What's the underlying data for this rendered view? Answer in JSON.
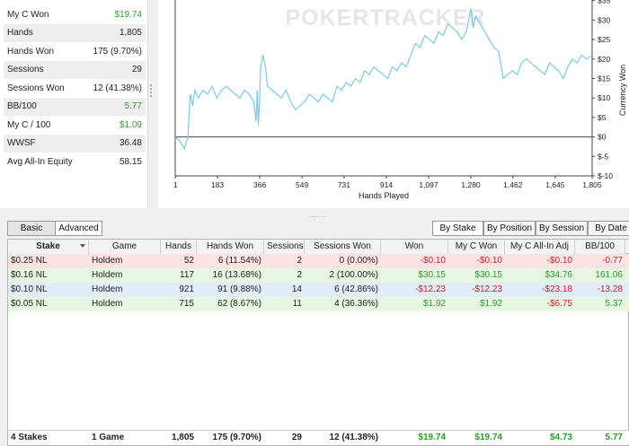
{
  "stats": [
    {
      "label": "My C Won",
      "value": "$19.74",
      "green": true
    },
    {
      "label": "Hands",
      "value": "1,805"
    },
    {
      "label": "Hands Won",
      "value": "175 (9.70%)"
    },
    {
      "label": "Sessions",
      "value": "29"
    },
    {
      "label": "Sessions Won",
      "value": "12 (41.38%)"
    },
    {
      "label": "BB/100",
      "value": "5.77",
      "green": true
    },
    {
      "label": "My C / 100",
      "value": "$1.09",
      "green": true
    },
    {
      "label": "WWSF",
      "value": "36.48"
    },
    {
      "label": "Avg All-In Equity",
      "value": "58.15"
    }
  ],
  "chart_data": {
    "type": "line",
    "watermark": "POKERTRACKER",
    "xlabel": "Hands Played",
    "ylabel": "Currency Won",
    "xlim": [
      0,
      1805
    ],
    "ylim": [
      -10,
      37
    ],
    "x_ticks": [
      1,
      183,
      366,
      549,
      731,
      914,
      1097,
      1280,
      1462,
      1645,
      1805
    ],
    "x_tick_labels": [
      "1",
      "183",
      "366",
      "549",
      "731",
      "914",
      "1,097",
      "1,280",
      "1,462",
      "1,645",
      "1,805"
    ],
    "y_ticks": [
      -10,
      -5,
      0,
      5,
      10,
      15,
      20,
      25,
      30,
      35
    ],
    "y_tick_labels": [
      "$-10",
      "$-5",
      "$0",
      "$5",
      "$10",
      "$15",
      "$20",
      "$25",
      "$30",
      "$35"
    ],
    "line_color": "#7ec8e3",
    "series": [
      {
        "x": [
          1,
          20,
          40,
          55,
          65,
          75,
          85,
          100,
          120,
          140,
          160,
          180,
          200,
          220,
          240,
          260,
          280,
          300,
          320,
          340,
          350,
          355,
          360,
          365,
          370,
          380,
          390,
          400,
          420,
          440,
          460,
          480,
          500,
          520,
          540,
          560,
          580,
          600,
          620,
          640,
          660,
          680,
          700,
          720,
          740,
          760,
          780,
          800,
          820,
          840,
          860,
          880,
          900,
          920,
          940,
          960,
          980,
          1000,
          1020,
          1040,
          1060,
          1080,
          1100,
          1120,
          1140,
          1160,
          1180,
          1200,
          1220,
          1240,
          1260,
          1280,
          1290,
          1300,
          1310,
          1320,
          1340,
          1360,
          1380,
          1400,
          1420,
          1440,
          1460,
          1480,
          1500,
          1520,
          1540,
          1560,
          1580,
          1600,
          1620,
          1640,
          1660,
          1680,
          1700,
          1720,
          1740,
          1760,
          1780,
          1805
        ],
        "y": [
          0,
          -1,
          -3,
          0,
          11,
          8,
          12,
          10,
          12,
          11,
          13,
          10,
          12,
          13,
          12,
          11,
          10,
          12,
          11,
          9,
          4,
          12,
          3,
          9,
          18,
          21,
          18,
          13,
          12,
          11,
          10,
          12,
          9,
          7,
          8,
          9,
          11,
          10,
          9,
          11,
          10,
          9,
          13,
          12,
          14,
          13,
          15,
          14,
          17,
          16,
          18,
          17,
          16,
          15,
          18,
          17,
          19,
          18,
          21,
          24,
          23,
          26,
          25,
          24,
          27,
          26,
          29,
          28,
          27,
          25,
          27,
          33,
          28,
          31,
          30,
          29,
          27,
          25,
          23,
          22,
          15,
          16,
          17,
          16,
          19,
          20,
          19,
          18,
          17,
          16,
          19,
          18,
          17,
          15,
          18,
          20,
          19,
          21,
          20,
          21
        ]
      }
    ]
  },
  "tabs_left": {
    "basic": "Basic",
    "advanced": "Advanced"
  },
  "tabs_right": {
    "by_stake": "By Stake",
    "by_position": "By Position",
    "by_session": "By Session",
    "by_date": "By Date"
  },
  "table": {
    "columns": [
      "Stake",
      "Game",
      "Hands",
      "Hands Won",
      "Sessions",
      "Sessions Won",
      "Won",
      "My C Won",
      "My C All-In Adj",
      "BB/100"
    ],
    "rows": [
      {
        "stake": "$0.25 NL",
        "game": "Holdem",
        "hands": "52",
        "hands_won": "6 (11.54%)",
        "sessions": "2",
        "sessions_won": "0 (0.00%)",
        "won": "-$0.10",
        "my_c_won": "-$0.10",
        "allin_adj": "-$0.10",
        "bb100": "-0.77",
        "bg": "#fbe3e3",
        "won_cls": "neg",
        "mycwon_cls": "neg",
        "adj_cls": "neg",
        "bb_cls": "neg"
      },
      {
        "stake": "$0.16 NL",
        "game": "Holdem",
        "hands": "117",
        "hands_won": "16 (13.68%)",
        "sessions": "2",
        "sessions_won": "2 (100.00%)",
        "won": "$30.15",
        "my_c_won": "$30.15",
        "allin_adj": "$34.76",
        "bb100": "161.06",
        "bg": "#e6f6e2",
        "won_cls": "pos",
        "mycwon_cls": "pos",
        "adj_cls": "pos",
        "bb_cls": "pos"
      },
      {
        "stake": "$0.10 NL",
        "game": "Holdem",
        "hands": "921",
        "hands_won": "91 (9.88%)",
        "sessions": "14",
        "sessions_won": "6 (42.86%)",
        "won": "-$12.23",
        "my_c_won": "-$12.23",
        "allin_adj": "-$23.18",
        "bb100": "-13.28",
        "bg": "#e2ecf8",
        "won_cls": "neg",
        "mycwon_cls": "neg",
        "adj_cls": "neg",
        "bb_cls": "neg"
      },
      {
        "stake": "$0.05 NL",
        "game": "Holdem",
        "hands": "715",
        "hands_won": "62 (8.67%)",
        "sessions": "11",
        "sessions_won": "4 (36.36%)",
        "won": "$1.92",
        "my_c_won": "$1.92",
        "allin_adj": "-$6.75",
        "bb100": "5.37",
        "bg": "#e6f6e2",
        "won_cls": "pos",
        "mycwon_cls": "pos",
        "adj_cls": "neg",
        "bb_cls": "pos"
      }
    ],
    "totals": {
      "stake": "4 Stakes",
      "game": "1 Game",
      "hands": "1,805",
      "hands_won": "175 (9.70%)",
      "sessions": "29",
      "sessions_won": "12 (41.38%)",
      "won": "$19.74",
      "my_c_won": "$19.74",
      "allin_adj": "$4.73",
      "bb100": "5.77"
    }
  },
  "colors": {
    "positive": "#2e9b2e",
    "negative": "#c0282c",
    "chart_line": "#7ec8e3"
  }
}
